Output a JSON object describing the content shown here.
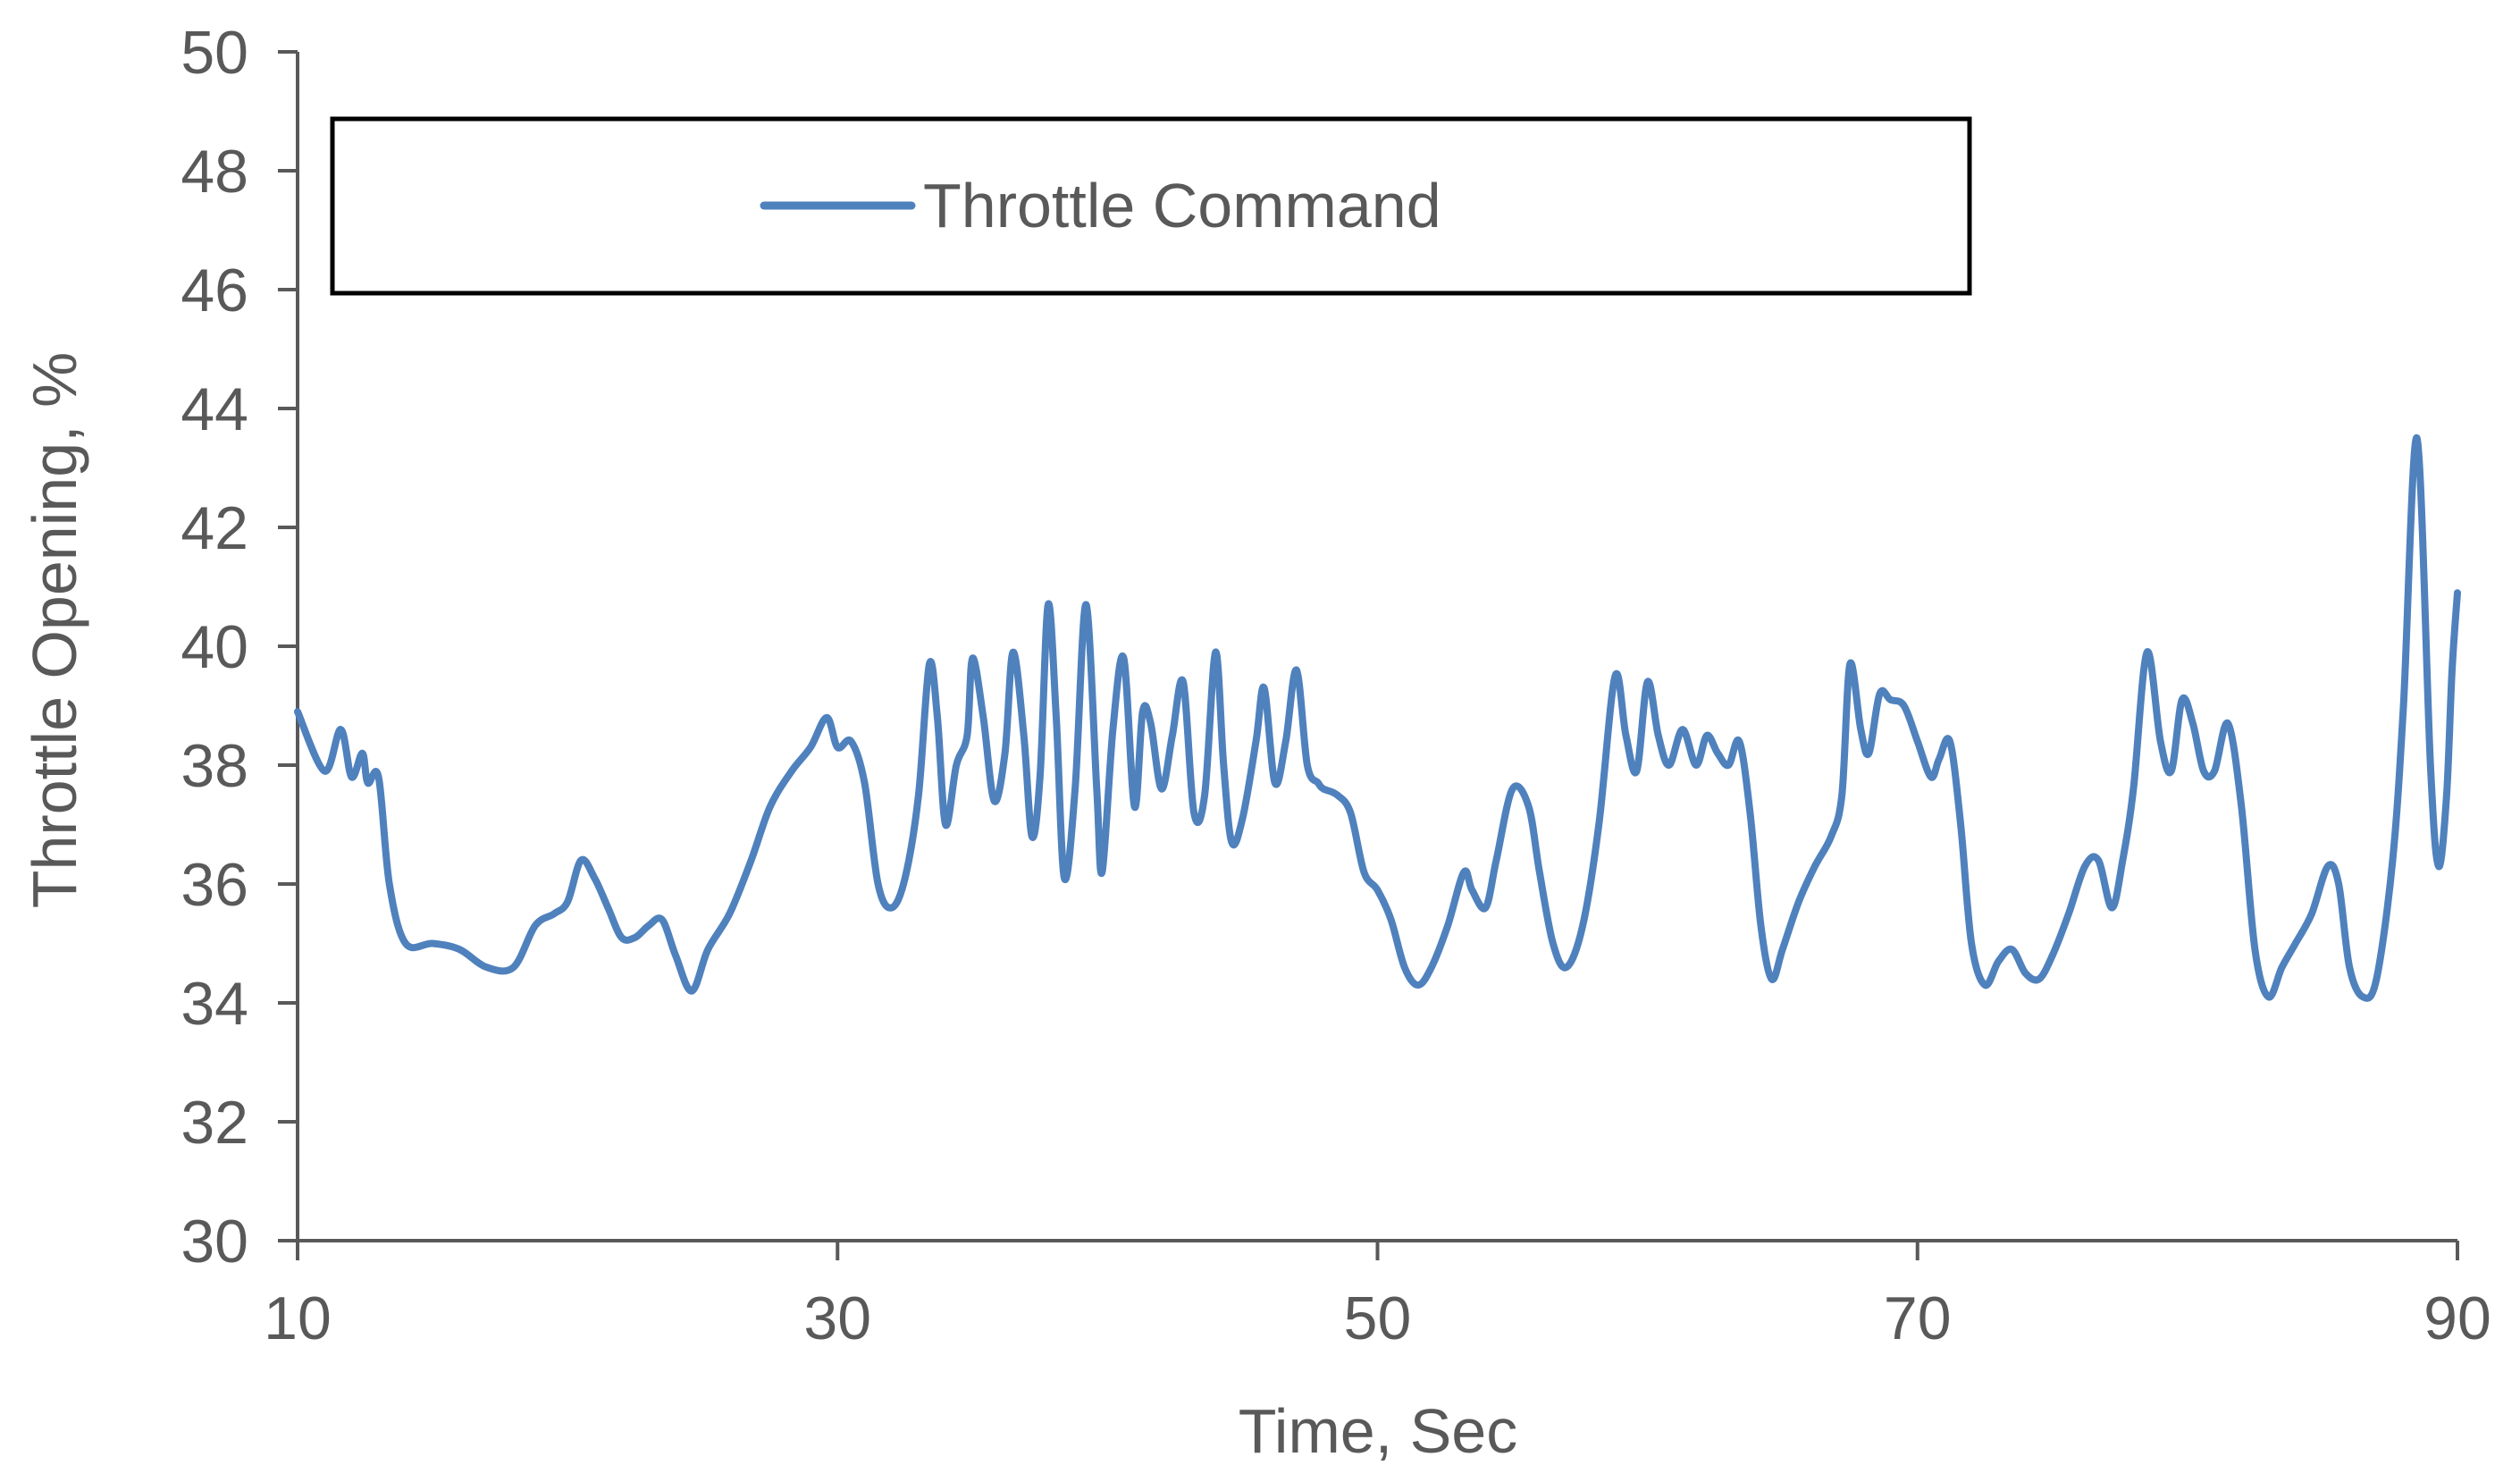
{
  "chart_data": {
    "type": "line",
    "title": "",
    "xlabel": "Time, Sec",
    "ylabel": "Throttle Opening, %",
    "xlim": [
      10,
      90
    ],
    "ylim": [
      30,
      50
    ],
    "x_ticks": [
      10,
      30,
      50,
      70,
      90
    ],
    "y_ticks": [
      30,
      32,
      34,
      36,
      38,
      40,
      42,
      44,
      46,
      48,
      50
    ],
    "grid": false,
    "legend_position": "top",
    "series": [
      {
        "name": "Throttle Command",
        "color": "#4F81BD",
        "points": [
          [
            10.0,
            38.9
          ],
          [
            11.0,
            37.9
          ],
          [
            11.6,
            38.6
          ],
          [
            12.0,
            37.8
          ],
          [
            12.4,
            38.2
          ],
          [
            12.6,
            37.7
          ],
          [
            13.0,
            37.8
          ],
          [
            13.4,
            36.0
          ],
          [
            14.0,
            35.0
          ],
          [
            15.0,
            35.0
          ],
          [
            16.0,
            34.9
          ],
          [
            17.0,
            34.6
          ],
          [
            18.0,
            34.6
          ],
          [
            18.8,
            35.3
          ],
          [
            19.5,
            35.5
          ],
          [
            20.0,
            35.7
          ],
          [
            20.5,
            36.4
          ],
          [
            21.0,
            36.1
          ],
          [
            21.5,
            35.6
          ],
          [
            22.0,
            35.1
          ],
          [
            22.5,
            35.1
          ],
          [
            23.0,
            35.3
          ],
          [
            23.5,
            35.4
          ],
          [
            24.0,
            34.8
          ],
          [
            24.6,
            34.2
          ],
          [
            25.2,
            34.9
          ],
          [
            26.0,
            35.5
          ],
          [
            26.8,
            36.4
          ],
          [
            27.5,
            37.3
          ],
          [
            28.3,
            37.9
          ],
          [
            29.0,
            38.3
          ],
          [
            29.6,
            38.8
          ],
          [
            30.0,
            38.3
          ],
          [
            30.5,
            38.4
          ],
          [
            31.0,
            37.7
          ],
          [
            31.5,
            36.0
          ],
          [
            32.0,
            35.6
          ],
          [
            32.5,
            36.1
          ],
          [
            33.0,
            37.5
          ],
          [
            33.4,
            39.7
          ],
          [
            33.7,
            38.8
          ],
          [
            34.0,
            37.0
          ],
          [
            34.4,
            38.0
          ],
          [
            34.8,
            38.5
          ],
          [
            35.0,
            39.8
          ],
          [
            35.4,
            38.8
          ],
          [
            35.8,
            37.4
          ],
          [
            36.2,
            38.2
          ],
          [
            36.5,
            39.9
          ],
          [
            36.9,
            38.5
          ],
          [
            37.2,
            36.8
          ],
          [
            37.5,
            37.8
          ],
          [
            37.8,
            40.7
          ],
          [
            38.1,
            38.8
          ],
          [
            38.4,
            36.1
          ],
          [
            38.8,
            37.6
          ],
          [
            39.2,
            40.7
          ],
          [
            39.6,
            37.6
          ],
          [
            39.8,
            36.2
          ],
          [
            40.2,
            38.6
          ],
          [
            40.6,
            39.8
          ],
          [
            41.0,
            37.3
          ],
          [
            41.3,
            38.9
          ],
          [
            41.6,
            38.7
          ],
          [
            42.0,
            37.6
          ],
          [
            42.4,
            38.5
          ],
          [
            42.8,
            39.4
          ],
          [
            43.2,
            37.2
          ],
          [
            43.6,
            37.5
          ],
          [
            44.0,
            39.9
          ],
          [
            44.3,
            38.0
          ],
          [
            44.6,
            36.7
          ],
          [
            45.0,
            37.1
          ],
          [
            45.5,
            38.4
          ],
          [
            45.8,
            39.3
          ],
          [
            46.2,
            37.7
          ],
          [
            46.6,
            38.4
          ],
          [
            47.0,
            39.6
          ],
          [
            47.4,
            38.0
          ],
          [
            47.8,
            37.7
          ],
          [
            48.0,
            37.6
          ],
          [
            48.5,
            37.5
          ],
          [
            49.0,
            37.2
          ],
          [
            49.5,
            36.2
          ],
          [
            50.0,
            35.9
          ],
          [
            50.5,
            35.4
          ],
          [
            51.0,
            34.6
          ],
          [
            51.5,
            34.3
          ],
          [
            52.0,
            34.6
          ],
          [
            52.6,
            35.3
          ],
          [
            53.2,
            36.2
          ],
          [
            53.5,
            35.9
          ],
          [
            54.0,
            35.6
          ],
          [
            54.4,
            36.4
          ],
          [
            55.0,
            37.6
          ],
          [
            55.6,
            37.3
          ],
          [
            56.0,
            36.2
          ],
          [
            56.5,
            35.0
          ],
          [
            57.0,
            34.6
          ],
          [
            57.6,
            35.3
          ],
          [
            58.2,
            37.0
          ],
          [
            58.8,
            39.5
          ],
          [
            59.2,
            38.5
          ],
          [
            59.6,
            37.9
          ],
          [
            60.0,
            39.4
          ],
          [
            60.4,
            38.5
          ],
          [
            60.8,
            38.0
          ],
          [
            61.3,
            38.6
          ],
          [
            61.8,
            38.0
          ],
          [
            62.2,
            38.5
          ],
          [
            62.6,
            38.2
          ],
          [
            63.0,
            38.0
          ],
          [
            63.4,
            38.4
          ],
          [
            63.8,
            37.2
          ],
          [
            64.2,
            35.3
          ],
          [
            64.6,
            34.4
          ],
          [
            65.0,
            34.9
          ],
          [
            65.6,
            35.7
          ],
          [
            66.2,
            36.3
          ],
          [
            66.8,
            36.8
          ],
          [
            67.2,
            37.5
          ],
          [
            67.5,
            39.7
          ],
          [
            67.9,
            38.6
          ],
          [
            68.2,
            38.2
          ],
          [
            68.6,
            39.2
          ],
          [
            69.0,
            39.1
          ],
          [
            69.5,
            39.0
          ],
          [
            70.0,
            38.4
          ],
          [
            70.5,
            37.8
          ],
          [
            70.8,
            38.1
          ],
          [
            71.2,
            38.4
          ],
          [
            71.6,
            37.0
          ],
          [
            72.0,
            35.0
          ],
          [
            72.5,
            34.3
          ],
          [
            73.0,
            34.7
          ],
          [
            73.5,
            34.9
          ],
          [
            74.0,
            34.5
          ],
          [
            74.5,
            34.4
          ],
          [
            75.0,
            34.8
          ],
          [
            75.6,
            35.5
          ],
          [
            76.2,
            36.3
          ],
          [
            76.7,
            36.4
          ],
          [
            77.2,
            35.6
          ],
          [
            77.6,
            36.4
          ],
          [
            78.0,
            37.6
          ],
          [
            78.5,
            39.9
          ],
          [
            79.0,
            38.4
          ],
          [
            79.4,
            37.9
          ],
          [
            79.8,
            39.1
          ],
          [
            80.2,
            38.7
          ],
          [
            80.6,
            37.9
          ],
          [
            81.0,
            37.9
          ],
          [
            81.5,
            38.7
          ],
          [
            82.0,
            37.3
          ],
          [
            82.5,
            34.9
          ],
          [
            83.0,
            34.1
          ],
          [
            83.5,
            34.6
          ],
          [
            84.0,
            35.0
          ],
          [
            84.6,
            35.5
          ],
          [
            85.2,
            36.3
          ],
          [
            85.6,
            36.0
          ],
          [
            86.0,
            34.6
          ],
          [
            86.5,
            34.1
          ],
          [
            87.0,
            34.4
          ],
          [
            87.6,
            36.4
          ],
          [
            88.0,
            39.0
          ],
          [
            88.5,
            43.5
          ],
          [
            89.0,
            38.0
          ],
          [
            89.3,
            36.3
          ],
          [
            89.6,
            37.5
          ],
          [
            89.8,
            39.6
          ],
          [
            90.0,
            40.9
          ]
        ]
      }
    ]
  }
}
